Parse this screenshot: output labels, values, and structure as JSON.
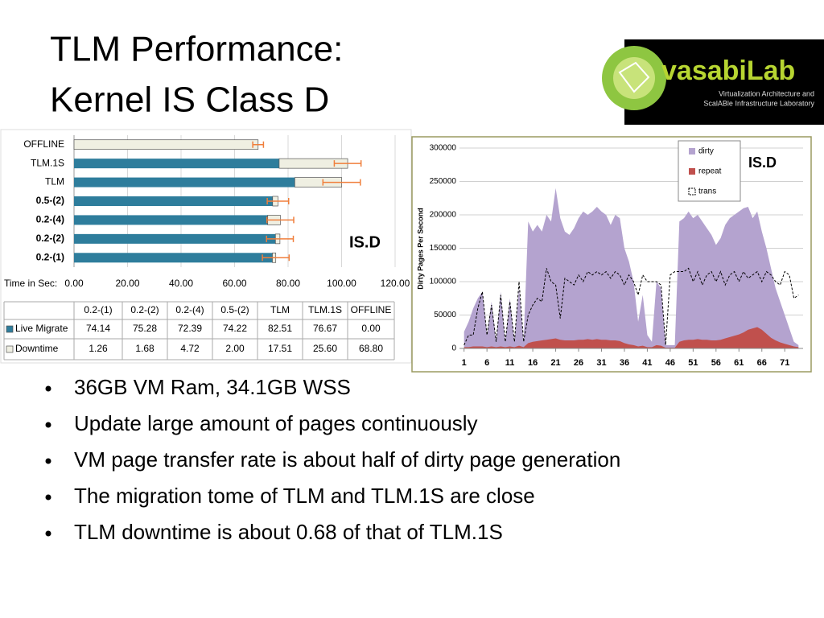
{
  "title_lines": [
    "TLM Performance:",
    "Kernel IS Class D"
  ],
  "logo": {
    "name": "vasabiLab",
    "lines": [
      "Virtualization Architecture and",
      "ScalABle Infrastructure Laboratory"
    ]
  },
  "bullets": [
    "36GB VM Ram, 34.1GB WSS",
    "Update large amount of pages continuously",
    "VM page transfer rate is about half of dirty page generation",
    "The migration tome of TLM and TLM.1S are close",
    "TLM downtime is about 0.68 of that of TLM.1S"
  ],
  "chart_data": [
    {
      "type": "hbar-stacked",
      "annotation": "IS.D",
      "xlabel": "Time in Sec:",
      "categories": [
        "0.2-(1)",
        "0.2-(2)",
        "0.2-(4)",
        "0.5-(2)",
        "TLM",
        "TLM.1S",
        "OFFLINE"
      ],
      "series": [
        {
          "name": "Live Migrate",
          "color": "#2e7d9c",
          "values": [
            74.14,
            75.28,
            72.39,
            74.22,
            82.51,
            76.67,
            0
          ],
          "value_labels": [
            "74.14",
            "75.28",
            "72.39",
            "74.22",
            "82.51",
            "76.67",
            "0.00"
          ]
        },
        {
          "name": "Downtime",
          "color": "#efefe2",
          "values": [
            1.26,
            1.68,
            4.72,
            2,
            17.51,
            25.6,
            68.8
          ],
          "value_labels": [
            "1.26",
            "1.68",
            "4.72",
            "2.00",
            "17.51",
            "25.60",
            "68.80"
          ],
          "errors": [
            5,
            5,
            5,
            4,
            7,
            5,
            2
          ],
          "error_color": "#f07f3c"
        }
      ],
      "xlim": [
        0,
        120
      ],
      "xticks": [
        {
          "value": 0,
          "label": "0.00"
        },
        {
          "value": 20,
          "label": "20.00"
        },
        {
          "value": 40,
          "label": "40.00"
        },
        {
          "value": 60,
          "label": "60.00"
        },
        {
          "value": 80,
          "label": "80.00"
        },
        {
          "value": 100,
          "label": "100.00"
        },
        {
          "value": 120,
          "label": "120.00"
        }
      ],
      "grid": true
    },
    {
      "type": "area",
      "annotation": "IS.D",
      "ylabel": "Dirty Pages Per Second",
      "x": [
        1,
        2,
        3,
        4,
        5,
        6,
        7,
        8,
        9,
        10,
        11,
        12,
        13,
        14,
        15,
        16,
        17,
        18,
        19,
        20,
        21,
        22,
        23,
        24,
        25,
        26,
        27,
        28,
        29,
        30,
        31,
        32,
        33,
        34,
        35,
        36,
        37,
        38,
        39,
        40,
        41,
        42,
        43,
        44,
        45,
        46,
        47,
        48,
        49,
        50,
        51,
        52,
        53,
        54,
        55,
        56,
        57,
        58,
        59,
        60,
        61,
        62,
        63,
        64,
        65,
        66,
        67,
        68,
        69,
        70,
        71,
        72,
        73,
        74
      ],
      "series": [
        {
          "name": "dirty",
          "color": "#b4a3cf",
          "kind": "area",
          "values": [
            25000,
            40000,
            60000,
            75000,
            85000,
            20000,
            70000,
            10000,
            85000,
            10000,
            75000,
            10000,
            90000,
            10000,
            190000,
            175000,
            185000,
            175000,
            200000,
            190000,
            240000,
            195000,
            175000,
            170000,
            180000,
            195000,
            205000,
            200000,
            205000,
            212000,
            205000,
            200000,
            185000,
            200000,
            195000,
            150000,
            130000,
            100000,
            40000,
            80000,
            20000,
            10000,
            100000,
            90000,
            5000,
            5000,
            5000,
            190000,
            195000,
            205000,
            195000,
            200000,
            190000,
            180000,
            170000,
            155000,
            165000,
            185000,
            195000,
            200000,
            205000,
            210000,
            212000,
            195000,
            205000,
            175000,
            150000,
            120000,
            90000,
            70000,
            50000,
            30000,
            10000,
            5000
          ]
        },
        {
          "name": "repeat",
          "color": "#c0504d",
          "kind": "area",
          "values": [
            2000,
            2000,
            3000,
            3000,
            3000,
            2000,
            3000,
            2000,
            3000,
            2000,
            3000,
            2000,
            4000,
            2000,
            8000,
            10000,
            11000,
            12000,
            13000,
            14000,
            15000,
            13000,
            12000,
            12000,
            12000,
            13000,
            13000,
            14000,
            13000,
            14000,
            13000,
            13000,
            12000,
            12000,
            11000,
            8000,
            6000,
            5000,
            3000,
            4000,
            2000,
            2000,
            5000,
            4000,
            1000,
            1000,
            1000,
            10000,
            12000,
            13000,
            13000,
            14000,
            13000,
            13000,
            12000,
            12000,
            13000,
            15000,
            17000,
            19000,
            21000,
            24000,
            28000,
            30000,
            32000,
            28000,
            22000,
            16000,
            12000,
            9000,
            7000,
            5000,
            3000,
            2000
          ]
        },
        {
          "name": "trans",
          "color": "#000000",
          "kind": "line",
          "values": [
            5000,
            20000,
            20000,
            60000,
            85000,
            20000,
            65000,
            10000,
            80000,
            10000,
            70000,
            10000,
            100000,
            10000,
            50000,
            65000,
            75000,
            70000,
            120000,
            100000,
            95000,
            45000,
            105000,
            100000,
            95000,
            110000,
            100000,
            115000,
            110000,
            115000,
            110000,
            115000,
            105000,
            115000,
            110000,
            95000,
            110000,
            100000,
            80000,
            110000,
            100000,
            100000,
            100000,
            95000,
            5000,
            110000,
            115000,
            115000,
            115000,
            120000,
            100000,
            115000,
            95000,
            110000,
            115000,
            100000,
            115000,
            95000,
            110000,
            115000,
            100000,
            115000,
            105000,
            110000,
            115000,
            100000,
            115000,
            110000,
            100000,
            95000,
            115000,
            110000,
            75000,
            80000
          ]
        }
      ],
      "xlim": [
        0,
        75
      ],
      "xticks": [
        1,
        6,
        11,
        16,
        21,
        26,
        31,
        36,
        41,
        46,
        51,
        56,
        61,
        66,
        71
      ],
      "ylim": [
        0,
        300000
      ],
      "yticks": [
        0,
        50000,
        100000,
        150000,
        200000,
        250000,
        300000
      ],
      "grid": true,
      "legend": "top-right"
    }
  ]
}
